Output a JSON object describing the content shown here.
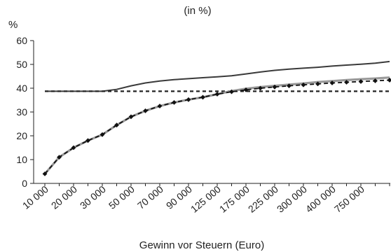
{
  "chart_data": {
    "type": "line",
    "title": "",
    "subtitle": "(in %)",
    "xlabel": "Gewinn vor Steuern (Euro)",
    "ylabel": "%",
    "ylim": [
      0,
      60
    ],
    "yticks": [
      0,
      10,
      20,
      30,
      40,
      50,
      60
    ],
    "x_tick_labels": [
      "10 000",
      "20 000",
      "30 000",
      "50 000",
      "70 000",
      "90 000",
      "125 000",
      "175 000",
      "225 000",
      "300 000",
      "400 000",
      "750 000"
    ],
    "x_point_count": 25,
    "series": [
      {
        "style": "solid",
        "color": "#3a3a3a",
        "values": [
          38.7,
          38.7,
          38.7,
          38.7,
          38.7,
          39.5,
          41.0,
          42.2,
          43.0,
          43.6,
          44.0,
          44.4,
          44.8,
          45.2,
          46.0,
          46.8,
          47.5,
          48.0,
          48.4,
          48.8,
          49.3,
          49.7,
          50.1,
          50.5,
          51.2
        ]
      },
      {
        "style": "dashed",
        "color": "#222222",
        "values": [
          38.7,
          38.7,
          38.7,
          38.7,
          38.7,
          38.7,
          38.7,
          38.7,
          38.7,
          38.7,
          38.7,
          38.7,
          38.7,
          38.7,
          38.7,
          38.7,
          38.7,
          38.7,
          38.7,
          38.7,
          38.7,
          38.7,
          38.7,
          38.7,
          38.7
        ]
      },
      {
        "style": "gray-line",
        "color": "#9a9a9a",
        "values": [
          4.0,
          11.0,
          15.0,
          18.0,
          20.5,
          24.5,
          28.0,
          30.5,
          32.5,
          34.0,
          35.2,
          36.2,
          37.5,
          38.8,
          39.8,
          40.5,
          41.0,
          41.5,
          42.0,
          42.6,
          43.0,
          43.4,
          43.8,
          44.1,
          44.5
        ]
      },
      {
        "style": "dashed-markers",
        "color": "#111111",
        "values": [
          4.0,
          11.0,
          15.0,
          18.0,
          20.5,
          24.5,
          28.0,
          30.5,
          32.5,
          34.0,
          35.2,
          36.2,
          37.5,
          38.5,
          39.3,
          40.0,
          40.5,
          41.0,
          41.4,
          41.8,
          42.2,
          42.5,
          42.8,
          43.1,
          43.4
        ]
      }
    ]
  }
}
